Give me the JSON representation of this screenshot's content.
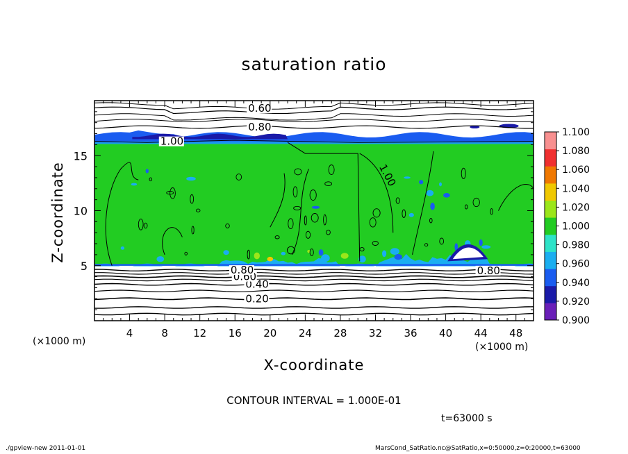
{
  "chart_data": {
    "type": "heatmap",
    "title": "saturation ratio",
    "xlabel": "X-coordinate",
    "ylabel": "Z-coordinate",
    "x_unit_label": "(×1000 m)",
    "xlim": [
      0,
      50
    ],
    "ylim": [
      0,
      20
    ],
    "x_ticks": [
      "4",
      "8",
      "12",
      "16",
      "20",
      "24",
      "28",
      "32",
      "36",
      "40",
      "44",
      "48"
    ],
    "x_tick_values": [
      4,
      8,
      12,
      16,
      20,
      24,
      28,
      32,
      36,
      40,
      44,
      48
    ],
    "y_ticks": [
      "5",
      "10",
      "15"
    ],
    "y_tick_values": [
      5,
      10,
      15
    ],
    "colorbar": {
      "levels": [
        "0.900",
        "0.920",
        "0.940",
        "0.960",
        "0.980",
        "1.000",
        "1.020",
        "1.040",
        "1.060",
        "1.080",
        "1.100"
      ],
      "colors": [
        "#6a1fb8",
        "#1a1aa8",
        "#1a5cf0",
        "#1aaef0",
        "#2ee3c8",
        "#22cc22",
        "#9be61a",
        "#f0c800",
        "#f07800",
        "#f03030",
        "#f89090"
      ]
    },
    "field_summary": {
      "green_layer_z": [
        5,
        16.2
      ],
      "blue_band_z": [
        16.2,
        17.2
      ],
      "undercut_color": "#ffffff"
    },
    "contour_lines": [
      {
        "label": "0.20",
        "z": 2.0
      },
      {
        "label": "0.40",
        "z": 3.3
      },
      {
        "label": "0.60",
        "z": 4.0
      },
      {
        "label": "0.80",
        "z": 4.6
      },
      {
        "label": "1.00",
        "z": 16.3
      },
      {
        "label": "0.80",
        "z": 17.6
      },
      {
        "label": "0.60",
        "z": 19.3
      }
    ],
    "contour_interval": "CONTOUR INTERVAL = 1.000E-01",
    "time_label": "t=63000 s"
  },
  "footer": {
    "left": "./gpview-new  2011-01-01",
    "right": "MarsCond_SatRatio.nc@SatRatio,x=0:50000,z=0:20000,t=63000"
  }
}
